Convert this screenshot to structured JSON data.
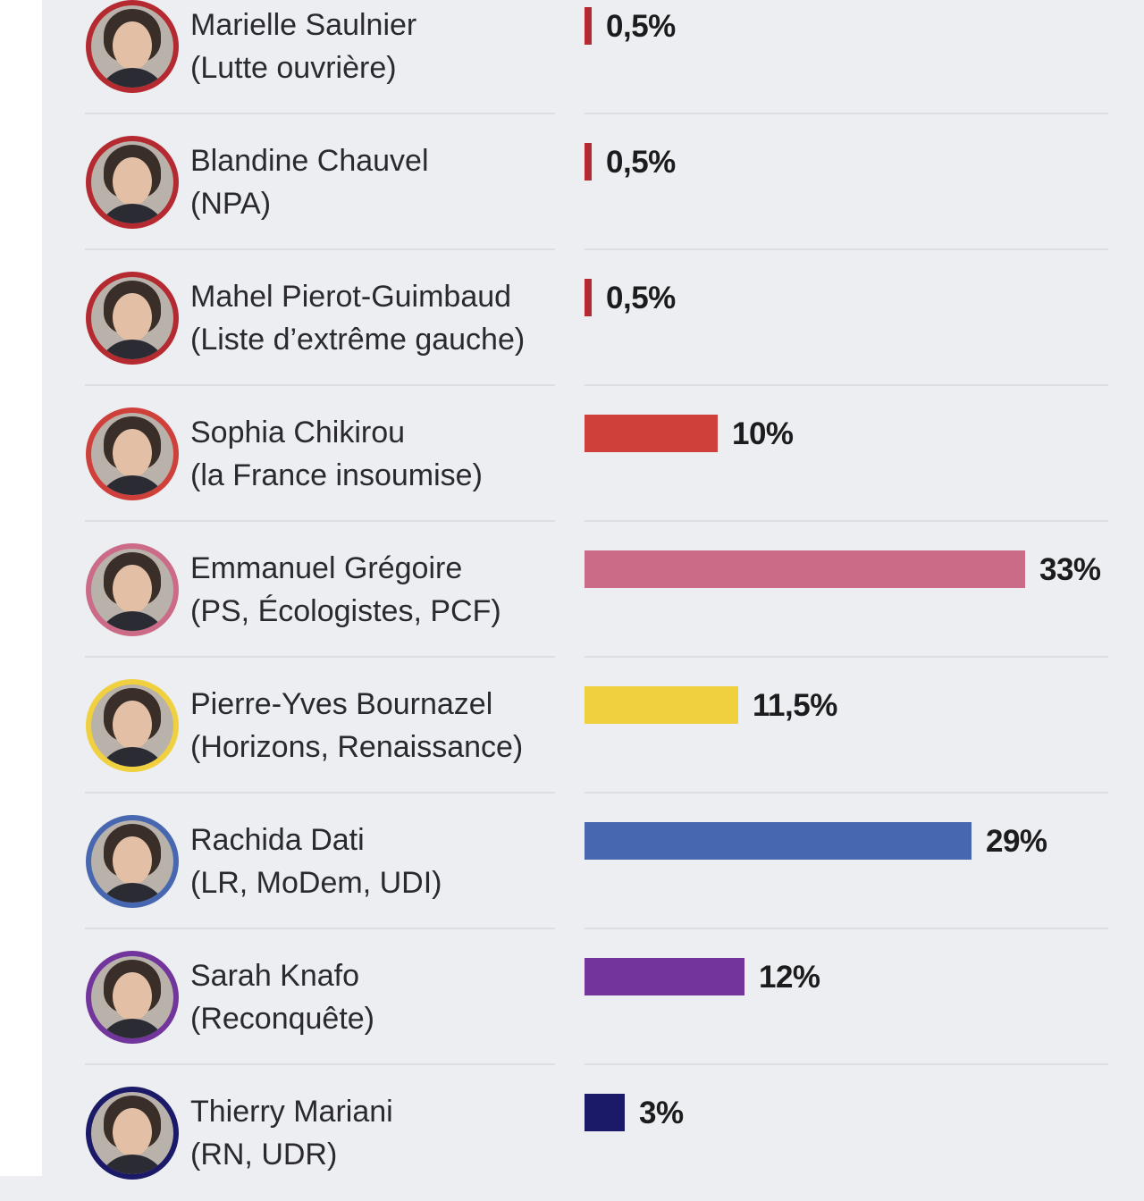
{
  "chart_data": {
    "type": "bar",
    "orientation": "horizontal",
    "unit": "%",
    "categories": [
      {
        "name": "Marielle Saulnier",
        "party": "(Lutte ouvrière)"
      },
      {
        "name": "Blandine Chauvel",
        "party": "(NPA)"
      },
      {
        "name": "Mahel Pierot-Guimbaud",
        "party": "(Liste d’extrême gauche)"
      },
      {
        "name": "Sophia Chikirou",
        "party": "(la France insoumise)"
      },
      {
        "name": "Emmanuel Grégoire",
        "party": "(PS, Écologistes, PCF)"
      },
      {
        "name": "Pierre-Yves Bournazel",
        "party": "(Horizons, Renaissance)"
      },
      {
        "name": "Rachida Dati",
        "party": "(LR, MoDem, UDI)"
      },
      {
        "name": "Sarah Knafo",
        "party": "(Reconquête)"
      },
      {
        "name": "Thierry Mariani",
        "party": "(RN, UDR)"
      }
    ],
    "values": [
      0.5,
      0.5,
      0.5,
      10,
      33,
      11.5,
      29,
      12,
      3
    ],
    "labels": [
      "0,5%",
      "0,5%",
      "0,5%",
      "10%",
      "33%",
      "11,5%",
      "29%",
      "12%",
      "3%"
    ],
    "colors": [
      "#b52a30",
      "#b52a30",
      "#b52a30",
      "#d0403a",
      "#cb6b87",
      "#f0d03e",
      "#4767b0",
      "#72359b",
      "#1b1a68"
    ],
    "xlim": [
      0,
      33
    ]
  }
}
